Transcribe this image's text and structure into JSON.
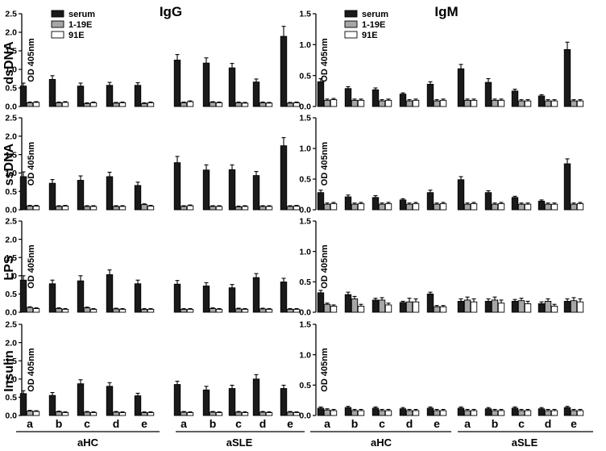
{
  "figure": {
    "column_titles": [
      "IgG",
      "IgM"
    ],
    "row_labels": [
      "dsDNA",
      "ssDNA",
      "LPS",
      "Insulin"
    ],
    "categories": [
      "a",
      "b",
      "c",
      "d",
      "e"
    ],
    "groups": [
      "aHC",
      "aSLE"
    ]
  },
  "colors": {
    "serum": "#1a1a1a",
    "clone_1_19E": "#a6a6a6",
    "clone_91E": "#ffffff"
  },
  "chart_data": [
    {
      "type": "bar",
      "title": "IgG",
      "row_label": "dsDNA",
      "ylabel": "OD 405nm",
      "ylim": [
        0,
        2.5
      ],
      "yticks": [
        "0.0",
        "0.5",
        "1.0",
        "1.5",
        "2.0",
        "2.5"
      ],
      "categories": [
        "a",
        "b",
        "c",
        "d",
        "e",
        "a",
        "b",
        "c",
        "d",
        "e"
      ],
      "groups": [
        "aHC",
        "aSLE"
      ],
      "legend": [
        "serum",
        "1-19E",
        "91E"
      ],
      "series": [
        {
          "name": "serum",
          "values": [
            0.55,
            0.73,
            0.55,
            0.57,
            0.57,
            1.25,
            1.17,
            1.04,
            0.66,
            1.89
          ],
          "errors": [
            0.08,
            0.1,
            0.08,
            0.08,
            0.07,
            0.15,
            0.14,
            0.12,
            0.08,
            0.27
          ]
        },
        {
          "name": "1-19E",
          "values": [
            0.1,
            0.1,
            0.08,
            0.09,
            0.08,
            0.1,
            0.11,
            0.1,
            0.1,
            0.09
          ],
          "errors": [
            0.02,
            0.02,
            0.02,
            0.02,
            0.02,
            0.02,
            0.02,
            0.02,
            0.02,
            0.02
          ]
        },
        {
          "name": "91E",
          "values": [
            0.11,
            0.11,
            0.1,
            0.1,
            0.1,
            0.13,
            0.1,
            0.09,
            0.09,
            0.1
          ],
          "errors": [
            0.02,
            0.02,
            0.02,
            0.02,
            0.02,
            0.02,
            0.02,
            0.02,
            0.02,
            0.02
          ]
        }
      ]
    },
    {
      "type": "bar",
      "title": "IgM",
      "row_label": "dsDNA",
      "ylabel": "OD 405nm",
      "ylim": [
        0,
        1.5
      ],
      "yticks": [
        "0.0",
        "0.5",
        "1.0",
        "1.5"
      ],
      "categories": [
        "a",
        "b",
        "c",
        "d",
        "e",
        "a",
        "b",
        "c",
        "d",
        "e"
      ],
      "groups": [
        "aHC",
        "aSLE"
      ],
      "legend": [
        "serum",
        "1-19E",
        "91E"
      ],
      "series": [
        {
          "name": "serum",
          "values": [
            0.4,
            0.29,
            0.27,
            0.2,
            0.36,
            0.61,
            0.39,
            0.25,
            0.17,
            0.92
          ],
          "errors": [
            0.05,
            0.03,
            0.03,
            0.02,
            0.04,
            0.07,
            0.06,
            0.03,
            0.02,
            0.12
          ]
        },
        {
          "name": "1-19E",
          "values": [
            0.1,
            0.1,
            0.09,
            0.09,
            0.09,
            0.1,
            0.1,
            0.09,
            0.09,
            0.09
          ],
          "errors": [
            0.02,
            0.02,
            0.02,
            0.02,
            0.02,
            0.02,
            0.02,
            0.02,
            0.02,
            0.02
          ]
        },
        {
          "name": "91E",
          "values": [
            0.11,
            0.1,
            0.1,
            0.1,
            0.1,
            0.1,
            0.1,
            0.09,
            0.09,
            0.09
          ],
          "errors": [
            0.02,
            0.02,
            0.02,
            0.02,
            0.02,
            0.02,
            0.02,
            0.02,
            0.02,
            0.02
          ]
        }
      ]
    },
    {
      "type": "bar",
      "title": "IgG",
      "row_label": "ssDNA",
      "ylabel": "OD 405nm",
      "ylim": [
        0,
        2.5
      ],
      "yticks": [
        "0.0",
        "0.5",
        "1.0",
        "1.5",
        "2.0",
        "2.5"
      ],
      "categories": [
        "a",
        "b",
        "c",
        "d",
        "e",
        "a",
        "b",
        "c",
        "d",
        "e"
      ],
      "groups": [
        "aHC",
        "aSLE"
      ],
      "series": [
        {
          "name": "serum",
          "values": [
            0.9,
            0.72,
            0.8,
            0.9,
            0.66,
            1.28,
            1.08,
            1.09,
            0.93,
            1.74
          ],
          "errors": [
            0.13,
            0.1,
            0.12,
            0.12,
            0.09,
            0.17,
            0.14,
            0.13,
            0.11,
            0.22
          ]
        },
        {
          "name": "1-19E",
          "values": [
            0.1,
            0.09,
            0.09,
            0.09,
            0.14,
            0.09,
            0.09,
            0.08,
            0.09,
            0.09
          ],
          "errors": [
            0.02,
            0.02,
            0.02,
            0.02,
            0.02,
            0.02,
            0.02,
            0.02,
            0.02,
            0.02
          ]
        },
        {
          "name": "91E",
          "values": [
            0.1,
            0.1,
            0.09,
            0.09,
            0.1,
            0.11,
            0.09,
            0.09,
            0.09,
            0.1
          ],
          "errors": [
            0.02,
            0.02,
            0.02,
            0.02,
            0.02,
            0.02,
            0.02,
            0.02,
            0.02,
            0.02
          ]
        }
      ]
    },
    {
      "type": "bar",
      "title": "IgM",
      "row_label": "ssDNA",
      "ylabel": "OD 405nm",
      "ylim": [
        0,
        1.5
      ],
      "yticks": [
        "0.0",
        "0.5",
        "1.0",
        "1.5"
      ],
      "categories": [
        "a",
        "b",
        "c",
        "d",
        "e",
        "a",
        "b",
        "c",
        "d",
        "e"
      ],
      "groups": [
        "aHC",
        "aSLE"
      ],
      "series": [
        {
          "name": "serum",
          "values": [
            0.28,
            0.21,
            0.2,
            0.16,
            0.28,
            0.49,
            0.28,
            0.2,
            0.14,
            0.75
          ],
          "errors": [
            0.04,
            0.03,
            0.03,
            0.02,
            0.04,
            0.05,
            0.03,
            0.02,
            0.02,
            0.08
          ]
        },
        {
          "name": "1-19E",
          "values": [
            0.09,
            0.09,
            0.09,
            0.09,
            0.09,
            0.09,
            0.09,
            0.09,
            0.09,
            0.09
          ],
          "errors": [
            0.02,
            0.02,
            0.02,
            0.02,
            0.02,
            0.02,
            0.02,
            0.02,
            0.02,
            0.02
          ]
        },
        {
          "name": "91E",
          "values": [
            0.1,
            0.1,
            0.1,
            0.1,
            0.1,
            0.1,
            0.1,
            0.09,
            0.09,
            0.1
          ],
          "errors": [
            0.02,
            0.02,
            0.02,
            0.02,
            0.02,
            0.02,
            0.02,
            0.02,
            0.02,
            0.02
          ]
        }
      ]
    },
    {
      "type": "bar",
      "title": "IgG",
      "row_label": "LPS",
      "ylabel": "OD 405nm",
      "ylim": [
        0,
        2.5
      ],
      "yticks": [
        "0.0",
        "0.5",
        "1.0",
        "1.5",
        "2.0",
        "2.5"
      ],
      "categories": [
        "a",
        "b",
        "c",
        "d",
        "e",
        "a",
        "b",
        "c",
        "d",
        "e"
      ],
      "groups": [
        "aHC",
        "aSLE"
      ],
      "series": [
        {
          "name": "serum",
          "values": [
            0.88,
            0.78,
            0.86,
            1.03,
            0.78,
            0.77,
            0.72,
            0.67,
            0.95,
            0.83
          ],
          "errors": [
            0.12,
            0.1,
            0.14,
            0.13,
            0.1,
            0.1,
            0.09,
            0.09,
            0.11,
            0.1
          ]
        },
        {
          "name": "1-19E",
          "values": [
            0.13,
            0.1,
            0.12,
            0.09,
            0.08,
            0.08,
            0.1,
            0.09,
            0.09,
            0.08
          ],
          "errors": [
            0.02,
            0.02,
            0.02,
            0.02,
            0.02,
            0.02,
            0.02,
            0.02,
            0.02,
            0.02
          ]
        },
        {
          "name": "91E",
          "values": [
            0.1,
            0.08,
            0.08,
            0.08,
            0.08,
            0.08,
            0.08,
            0.08,
            0.08,
            0.08
          ],
          "errors": [
            0.02,
            0.02,
            0.02,
            0.02,
            0.02,
            0.02,
            0.02,
            0.02,
            0.02,
            0.02
          ]
        }
      ]
    },
    {
      "type": "bar",
      "title": "IgM",
      "row_label": "LPS",
      "ylabel": "OD 405nm",
      "ylim": [
        0,
        1.5
      ],
      "yticks": [
        "0.0",
        "0.5",
        "1.0",
        "1.5"
      ],
      "categories": [
        "a",
        "b",
        "c",
        "d",
        "e",
        "a",
        "b",
        "c",
        "d",
        "e"
      ],
      "groups": [
        "aHC",
        "aSLE"
      ],
      "series": [
        {
          "name": "serum",
          "values": [
            0.32,
            0.29,
            0.2,
            0.16,
            0.3,
            0.18,
            0.18,
            0.18,
            0.14,
            0.18
          ],
          "errors": [
            0.04,
            0.04,
            0.03,
            0.02,
            0.03,
            0.04,
            0.04,
            0.03,
            0.03,
            0.04
          ]
        },
        {
          "name": "1-19E",
          "values": [
            0.13,
            0.22,
            0.2,
            0.17,
            0.09,
            0.2,
            0.2,
            0.19,
            0.18,
            0.19
          ],
          "errors": [
            0.02,
            0.04,
            0.04,
            0.06,
            0.02,
            0.05,
            0.05,
            0.04,
            0.04,
            0.05
          ]
        },
        {
          "name": "91E",
          "values": [
            0.1,
            0.1,
            0.12,
            0.17,
            0.09,
            0.17,
            0.15,
            0.14,
            0.1,
            0.17
          ],
          "errors": [
            0.02,
            0.03,
            0.03,
            0.05,
            0.02,
            0.05,
            0.05,
            0.04,
            0.03,
            0.05
          ]
        }
      ]
    },
    {
      "type": "bar",
      "title": "IgG",
      "row_label": "Insulin",
      "ylabel": "OD 405nm",
      "ylim": [
        0,
        2.5
      ],
      "yticks": [
        "0.0",
        "0.5",
        "1.0",
        "1.5",
        "2.0",
        "2.5"
      ],
      "categories": [
        "a",
        "b",
        "c",
        "d",
        "e",
        "a",
        "b",
        "c",
        "d",
        "e"
      ],
      "groups": [
        "aHC",
        "aSLE"
      ],
      "series": [
        {
          "name": "serum",
          "values": [
            0.6,
            0.55,
            0.87,
            0.8,
            0.54,
            0.85,
            0.7,
            0.74,
            1.0,
            0.74
          ],
          "errors": [
            0.08,
            0.08,
            0.11,
            0.1,
            0.07,
            0.09,
            0.1,
            0.09,
            0.12,
            0.09
          ]
        },
        {
          "name": "1-19E",
          "values": [
            0.12,
            0.1,
            0.09,
            0.09,
            0.08,
            0.09,
            0.09,
            0.09,
            0.09,
            0.09
          ],
          "errors": [
            0.02,
            0.02,
            0.02,
            0.02,
            0.02,
            0.02,
            0.02,
            0.02,
            0.02,
            0.02
          ]
        },
        {
          "name": "91E",
          "values": [
            0.11,
            0.08,
            0.08,
            0.08,
            0.08,
            0.08,
            0.08,
            0.08,
            0.08,
            0.08
          ],
          "errors": [
            0.02,
            0.02,
            0.02,
            0.02,
            0.02,
            0.02,
            0.02,
            0.02,
            0.02,
            0.02
          ]
        }
      ]
    },
    {
      "type": "bar",
      "title": "IgM",
      "row_label": "Insulin",
      "ylabel": "OD 405nm",
      "ylim": [
        0,
        1.5
      ],
      "yticks": [
        "0.0",
        "0.5",
        "1.0",
        "1.5"
      ],
      "categories": [
        "a",
        "b",
        "c",
        "d",
        "e",
        "a",
        "b",
        "c",
        "d",
        "e"
      ],
      "groups": [
        "aHC",
        "aSLE"
      ],
      "series": [
        {
          "name": "serum",
          "values": [
            0.12,
            0.13,
            0.12,
            0.11,
            0.12,
            0.12,
            0.11,
            0.12,
            0.11,
            0.13
          ],
          "errors": [
            0.02,
            0.02,
            0.02,
            0.02,
            0.02,
            0.02,
            0.02,
            0.02,
            0.02,
            0.02
          ]
        },
        {
          "name": "1-19E",
          "values": [
            0.09,
            0.08,
            0.08,
            0.08,
            0.08,
            0.08,
            0.08,
            0.08,
            0.08,
            0.08
          ],
          "errors": [
            0.02,
            0.02,
            0.02,
            0.02,
            0.02,
            0.02,
            0.02,
            0.02,
            0.02,
            0.02
          ]
        },
        {
          "name": "91E",
          "values": [
            0.08,
            0.08,
            0.08,
            0.08,
            0.08,
            0.08,
            0.08,
            0.08,
            0.08,
            0.08
          ],
          "errors": [
            0.02,
            0.02,
            0.02,
            0.02,
            0.02,
            0.02,
            0.02,
            0.02,
            0.02,
            0.02
          ]
        }
      ]
    }
  ]
}
